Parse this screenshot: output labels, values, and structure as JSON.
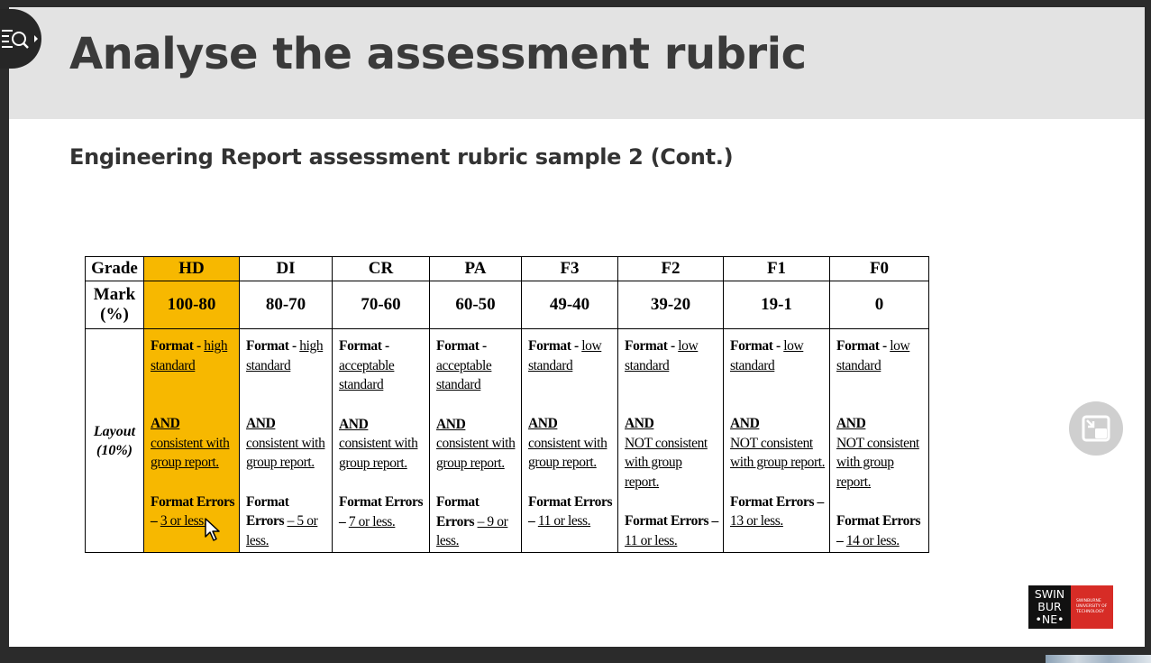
{
  "slide": {
    "title": "Analyse the assessment rubric",
    "subtitle": "Engineering Report assessment rubric sample 2 (Cont.)"
  },
  "rubric": {
    "grade_label": "Grade",
    "mark_label": [
      "Mark",
      "(%)"
    ],
    "grades": [
      "HD",
      "DI",
      "CR",
      "PA",
      "F3",
      "F2",
      "F1",
      "F0"
    ],
    "marks": [
      "100-80",
      "80-70",
      "70-60",
      "60-50",
      "49-40",
      "39-20",
      "19-1",
      "0"
    ],
    "layout_label": [
      "Layout",
      "(10%)"
    ],
    "criteria": [
      {
        "format_prefix": "Format - ",
        "format_level": "high standard",
        "and": "AND",
        "consistency": "consistent with group report.",
        "errors_label": "Format Errors – ",
        "errors_limit": "3 or less."
      },
      {
        "format_prefix": "Format - ",
        "format_level": "high standard",
        "and": "AND",
        "consistency": "consistent with group report.",
        "errors_label": "Format Errors ",
        "errors_limit": "– 5 or less."
      },
      {
        "format_prefix": "Format - ",
        "format_level": "acceptable standard",
        "and": "AND",
        "consistency": "consistent with group report.",
        "errors_label": "Format Errors – ",
        "errors_limit": "7 or less."
      },
      {
        "format_prefix": "Format - ",
        "format_level": "acceptable standard",
        "and": "AND",
        "consistency": "consistent with group report.",
        "errors_label": "Format Errors ",
        "errors_limit": "– 9 or less."
      },
      {
        "format_prefix": "Format - ",
        "format_level": "low standard",
        "and": "AND",
        "consistency": "consistent with group report.",
        "errors_label": "Format Errors – ",
        "errors_limit": "11 or less."
      },
      {
        "format_prefix": "Format - ",
        "format_level": "low standard",
        "and": "AND",
        "consistency": "NOT consistent with group report.",
        "errors_label": "Format Errors – ",
        "errors_limit": "11 or less."
      },
      {
        "format_prefix": "Format - ",
        "format_level": "low standard",
        "and": "AND",
        "consistency": "NOT consistent with group report.",
        "errors_label": "Format Errors – ",
        "errors_limit": "13 or less."
      },
      {
        "format_prefix": "Format - ",
        "format_level": "low standard",
        "and": "AND",
        "consistency": "NOT consistent with group report.",
        "errors_label": "Format Errors – ",
        "errors_limit": "14 or less."
      }
    ]
  },
  "logo": {
    "lines": [
      "SWIN",
      "BUR",
      "•NE•"
    ],
    "tagline": [
      "SWINBURNE",
      "UNIVERSITY OF",
      "TECHNOLOGY"
    ]
  },
  "icons": {
    "viewer_tools": "search-document-icon",
    "pip": "picture-in-picture-icon",
    "cursor": "mouse-pointer-icon"
  },
  "colors": {
    "highlight": "#f7b800",
    "title_band": "#e3e3e3",
    "logo_red": "#d72c26"
  }
}
